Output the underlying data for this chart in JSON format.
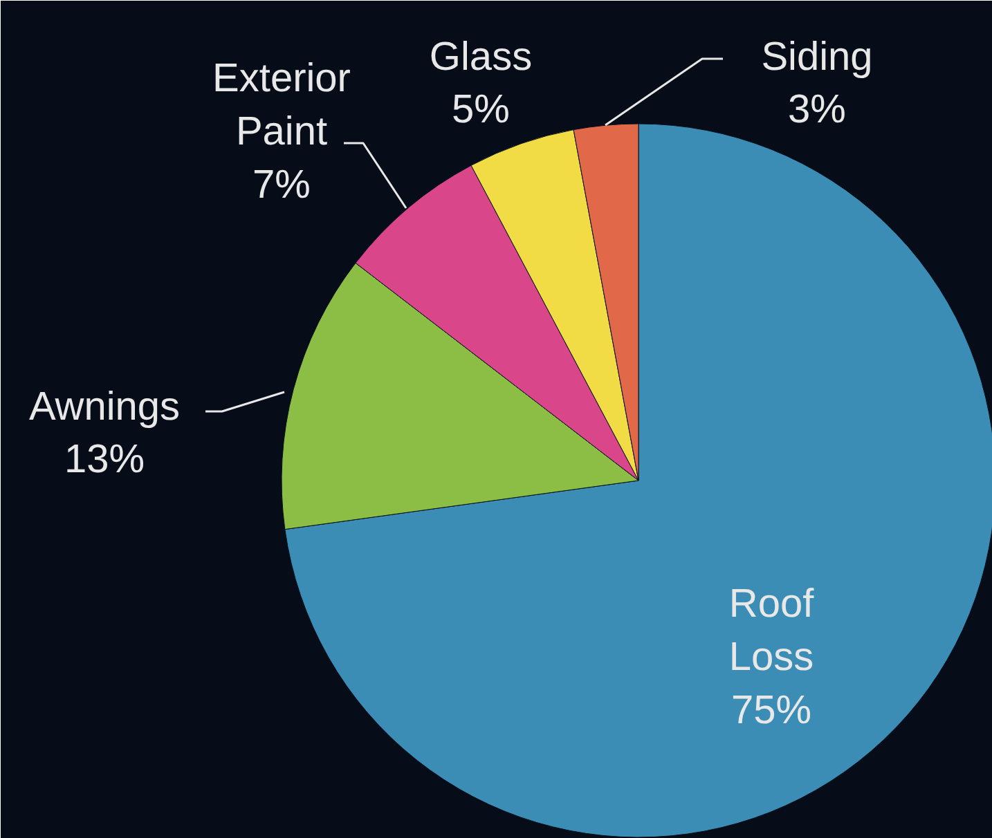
{
  "chart_data": {
    "type": "pie",
    "categories": [
      "Roof Loss",
      "Awnings",
      "Exterior Paint",
      "Glass",
      "Siding"
    ],
    "values": [
      75,
      13,
      7,
      5,
      3
    ],
    "value_labels": [
      "75%",
      "13%",
      "7%",
      "5%",
      "3%"
    ],
    "colors": [
      "#3b8db5",
      "#8cbd45",
      "#d9468a",
      "#f2dc45",
      "#e2684a"
    ]
  }
}
